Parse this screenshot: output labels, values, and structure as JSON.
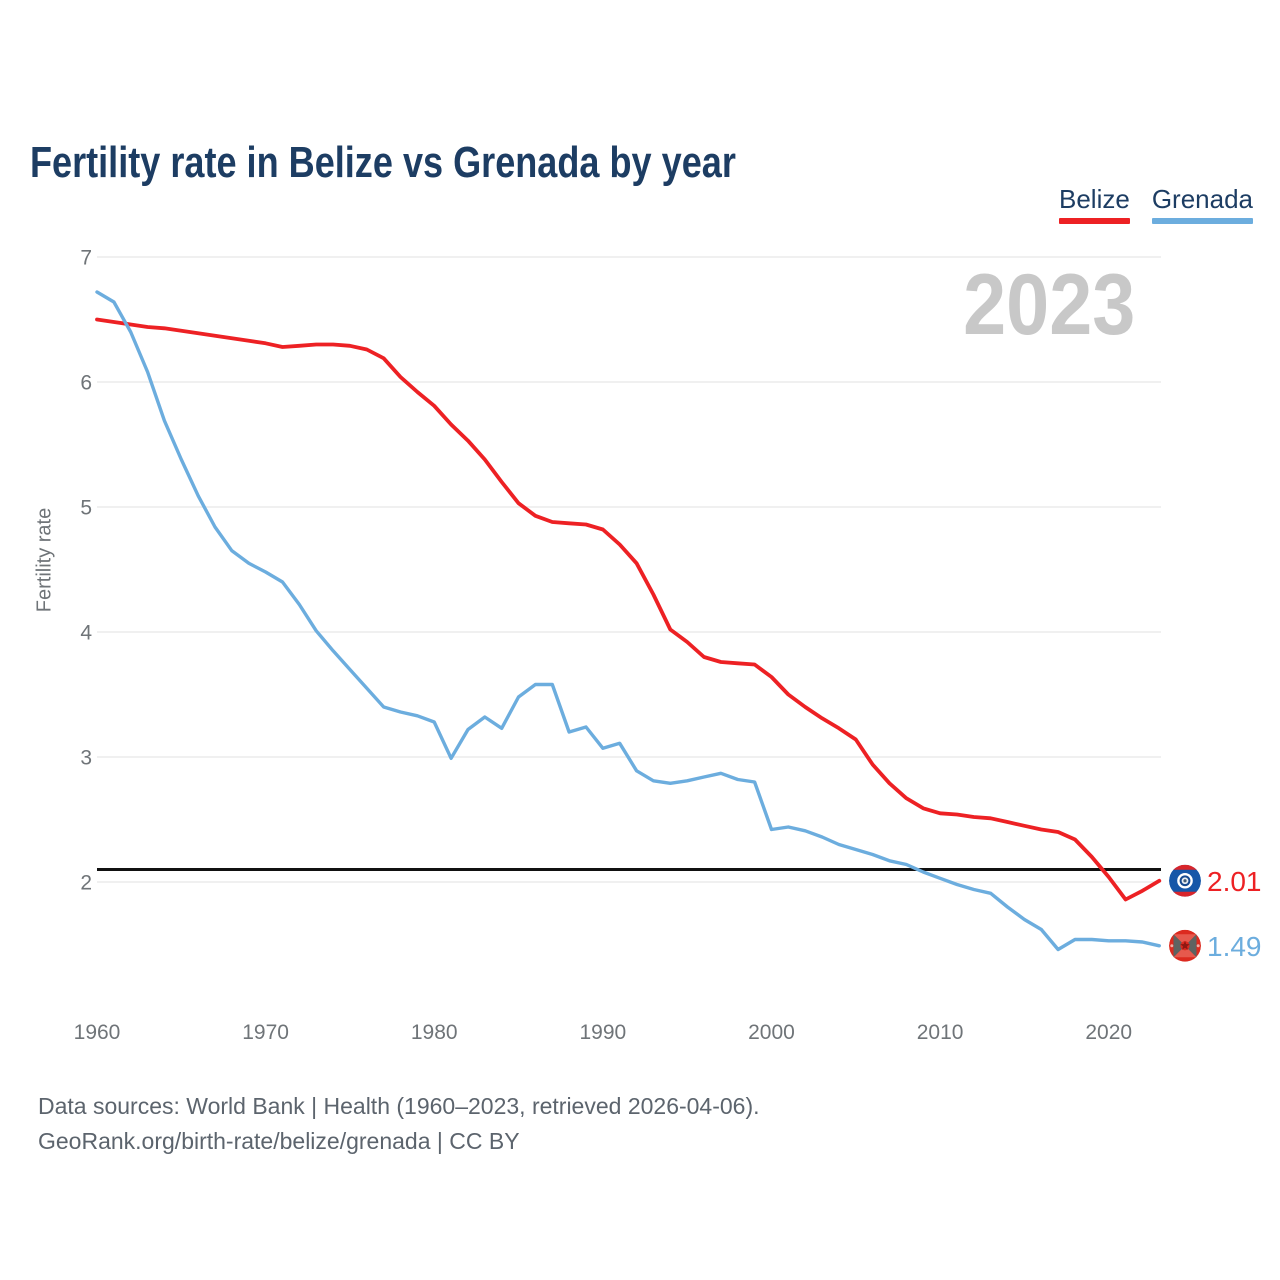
{
  "page_title": "Fertility rate in Belize vs Grenada by year",
  "watermark": "2023",
  "legend": {
    "items": [
      {
        "label": "Belize",
        "color": "#ed2124"
      },
      {
        "label": "Grenada",
        "color": "#6cadde"
      }
    ]
  },
  "y_axis": {
    "title": "Fertility rate",
    "ticks": [
      7,
      6,
      5,
      4,
      3,
      2
    ]
  },
  "x_axis": {
    "ticks": [
      1960,
      1970,
      1980,
      1990,
      2000,
      2010,
      2020
    ]
  },
  "reference_line": {
    "value": 2.1,
    "color": "#111111"
  },
  "end_labels": [
    {
      "series": "Belize",
      "value": "2.01",
      "color": "#ed2124",
      "icon": "belize-flag"
    },
    {
      "series": "Grenada",
      "value": "1.49",
      "color": "#6cadde",
      "icon": "grenada-flag"
    }
  ],
  "footer": {
    "line1": "Data sources: World Bank | Health (1960–2023, retrieved 2026-04-06).",
    "line2": "GeoRank.org/birth-rate/belize/grenada | CC BY"
  },
  "chart_data": {
    "type": "line",
    "title": "Fertility rate in Belize vs Grenada by year",
    "xlabel": "",
    "ylabel": "Fertility rate",
    "xlim": [
      1960,
      2023
    ],
    "ylim": [
      1.1,
      7.05
    ],
    "grid": "horizontal",
    "legend_position": "top-right",
    "x": [
      1960,
      1961,
      1962,
      1963,
      1964,
      1965,
      1966,
      1967,
      1968,
      1969,
      1970,
      1971,
      1972,
      1973,
      1974,
      1975,
      1976,
      1977,
      1978,
      1979,
      1980,
      1981,
      1982,
      1983,
      1984,
      1985,
      1986,
      1987,
      1988,
      1989,
      1990,
      1991,
      1992,
      1993,
      1994,
      1995,
      1996,
      1997,
      1998,
      1999,
      2000,
      2001,
      2002,
      2003,
      2004,
      2005,
      2006,
      2007,
      2008,
      2009,
      2010,
      2011,
      2012,
      2013,
      2014,
      2015,
      2016,
      2017,
      2018,
      2019,
      2020,
      2021,
      2022,
      2023
    ],
    "series": [
      {
        "name": "Belize",
        "color": "#ed2124",
        "values": [
          6.5,
          6.48,
          6.46,
          6.44,
          6.43,
          6.41,
          6.39,
          6.37,
          6.35,
          6.33,
          6.31,
          6.28,
          6.29,
          6.3,
          6.3,
          6.29,
          6.26,
          6.19,
          6.04,
          5.92,
          5.81,
          5.66,
          5.53,
          5.38,
          5.2,
          5.03,
          4.93,
          4.88,
          4.87,
          4.86,
          4.82,
          4.7,
          4.55,
          4.3,
          4.02,
          3.92,
          3.8,
          3.76,
          3.75,
          3.74,
          3.64,
          3.5,
          3.4,
          3.31,
          3.23,
          3.14,
          2.94,
          2.79,
          2.67,
          2.59,
          2.55,
          2.54,
          2.52,
          2.51,
          2.48,
          2.45,
          2.42,
          2.4,
          2.34,
          2.2,
          2.04,
          1.86,
          1.93,
          2.01
        ]
      },
      {
        "name": "Grenada",
        "color": "#6cadde",
        "values": [
          6.72,
          6.64,
          6.4,
          6.08,
          5.69,
          5.38,
          5.09,
          4.84,
          4.65,
          4.55,
          4.48,
          4.4,
          4.22,
          4.01,
          3.85,
          3.7,
          3.55,
          3.4,
          3.36,
          3.33,
          3.28,
          2.99,
          3.22,
          3.32,
          3.23,
          3.48,
          3.58,
          3.58,
          3.2,
          3.24,
          3.07,
          3.11,
          2.89,
          2.81,
          2.79,
          2.81,
          2.84,
          2.87,
          2.82,
          2.8,
          2.42,
          2.44,
          2.41,
          2.36,
          2.3,
          2.26,
          2.22,
          2.17,
          2.14,
          2.08,
          2.03,
          1.98,
          1.94,
          1.91,
          1.8,
          1.7,
          1.62,
          1.46,
          1.54,
          1.54,
          1.53,
          1.53,
          1.52,
          1.49
        ]
      }
    ],
    "annotations": {
      "replacement_level": 2.1,
      "latest_year": "2023",
      "latest_values": {
        "Belize": 2.01,
        "Grenada": 1.49
      }
    }
  }
}
